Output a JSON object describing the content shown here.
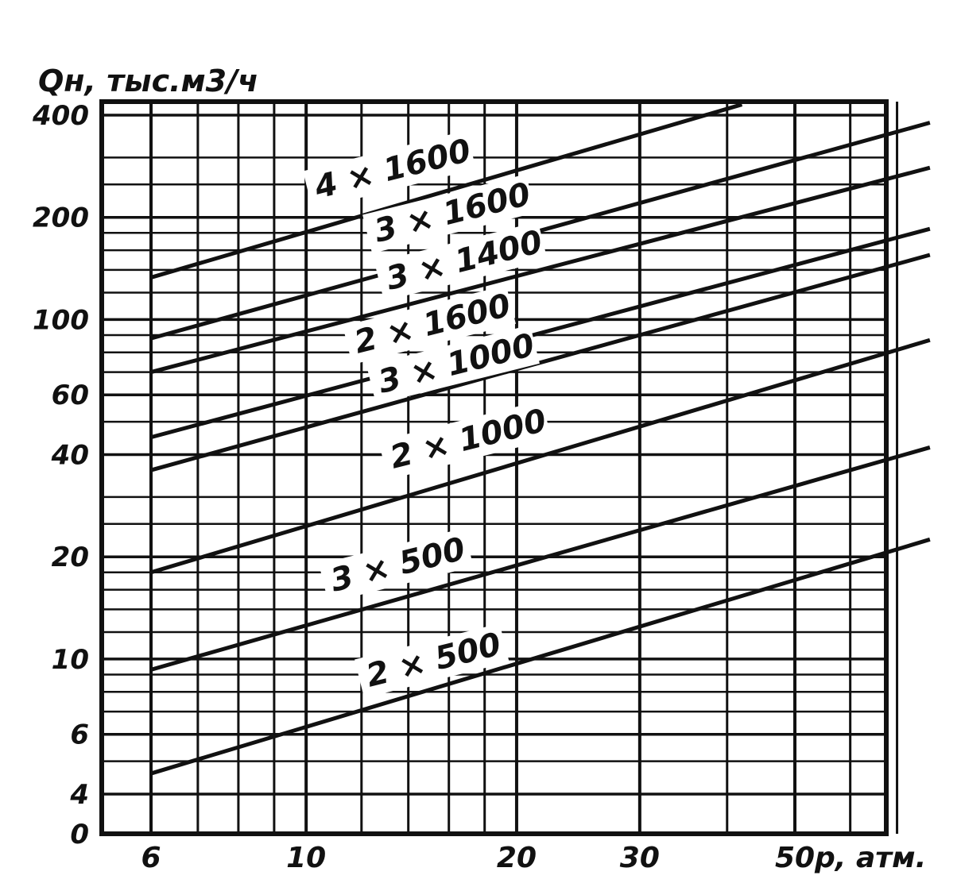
{
  "chart_data": {
    "type": "line",
    "y_axis_title": "Qн, тыс.м3/ч",
    "x_axis_title": "p, атм.",
    "x_ticks": [
      "6",
      "10",
      "20",
      "30",
      "50"
    ],
    "y_ticks": [
      "0",
      "4",
      "6",
      "10",
      "20",
      "40",
      "60",
      "100",
      "200",
      "400"
    ],
    "x_range": [
      6,
      78
    ],
    "y_scale": "log",
    "x_scale": "log",
    "grid": true,
    "series": [
      {
        "name": "4 × 1600",
        "points": [
          [
            6,
            133
          ],
          [
            42,
            430
          ]
        ]
      },
      {
        "name": "3 × 1600",
        "points": [
          [
            6,
            88
          ],
          [
            78,
            380
          ]
        ]
      },
      {
        "name": "3 × 1400",
        "points": [
          [
            6,
            70
          ],
          [
            78,
            280
          ]
        ]
      },
      {
        "name": "2 × 1600",
        "points": [
          [
            6,
            45
          ],
          [
            78,
            185
          ]
        ]
      },
      {
        "name": "3 × 1000",
        "points": [
          [
            6,
            36
          ],
          [
            78,
            155
          ]
        ]
      },
      {
        "name": "2 × 1000",
        "points": [
          [
            6,
            18
          ],
          [
            78,
            87
          ]
        ]
      },
      {
        "name": "3 × 500",
        "points": [
          [
            6,
            9.3
          ],
          [
            78,
            42
          ]
        ]
      },
      {
        "name": "2 × 500",
        "points": [
          [
            6,
            4.6
          ],
          [
            78,
            22.5
          ]
        ]
      }
    ]
  }
}
